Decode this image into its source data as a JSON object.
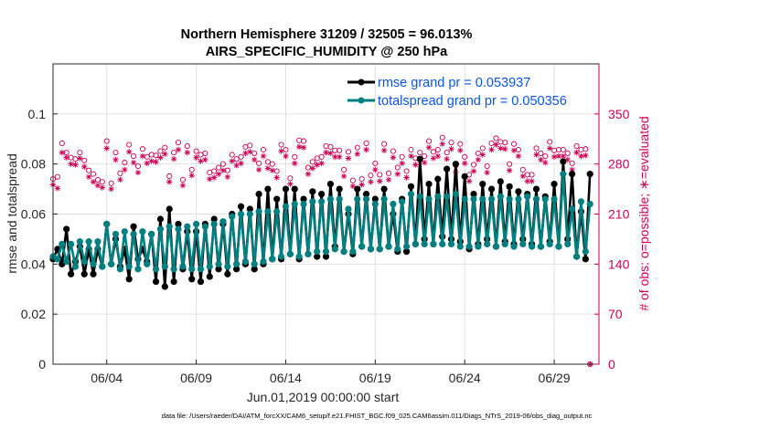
{
  "chart_data": {
    "type": "line",
    "title": "Northern Hemisphere 31209 / 32505 = 96.013%",
    "subtitle": "AIRS_SPECIFIC_HUMIDITY @ 250 hPa",
    "xlabel": "Jun.01,2019 00:00:00 start",
    "ylabel": "rmse and totalspread",
    "y2label": "# of obs: o=possible; ∗=evaluated",
    "footnote": "data file: /Users/raeder/DAI/ATM_forcXX/CAM6_setup/f.e21.FHIST_BGC.f09_025.CAM6assim.011/Diags_NTrS_2019-06/obs_diag_output.nc",
    "xlim": [
      1.0,
      31.5
    ],
    "ylim": [
      0,
      0.12
    ],
    "y2lim": [
      0,
      420
    ],
    "xticks": [
      4,
      9,
      14,
      19,
      24,
      29
    ],
    "xtick_labels": [
      "06/04",
      "06/09",
      "06/14",
      "06/19",
      "06/24",
      "06/29"
    ],
    "yticks": [
      0,
      0.02,
      0.04,
      0.06,
      0.08,
      0.1
    ],
    "ytick_labels": [
      "0",
      "0.02",
      "0.04",
      "0.06",
      "0.08",
      "0.1"
    ],
    "y2ticks": [
      0,
      70,
      140,
      210,
      280,
      350
    ],
    "y2tick_labels": [
      "0",
      "70",
      "140",
      "210",
      "280",
      "350"
    ],
    "grid": true,
    "legend_position": "top-right",
    "colors": {
      "rmse": "#000000",
      "spread": "#007f80",
      "obs": "#cc0055",
      "legend_text": "#0b55e0"
    },
    "x_start": 1.0,
    "x_step": 0.25,
    "series": [
      {
        "name": "rmse grand pr = 0.053937",
        "values": [
          0.042,
          0.046,
          0.04,
          0.054,
          0.036,
          0.041,
          0.047,
          0.036,
          0.046,
          0.036,
          0.046,
          0.039,
          0.056,
          0.04,
          0.05,
          0.039,
          0.046,
          0.034,
          0.055,
          0.042,
          0.046,
          0.041,
          0.052,
          0.033,
          0.058,
          0.031,
          0.062,
          0.033,
          0.056,
          0.038,
          0.053,
          0.034,
          0.053,
          0.033,
          0.056,
          0.035,
          0.058,
          0.038,
          0.056,
          0.036,
          0.06,
          0.038,
          0.063,
          0.04,
          0.062,
          0.038,
          0.068,
          0.04,
          0.07,
          0.042,
          0.066,
          0.042,
          0.07,
          0.044,
          0.07,
          0.042,
          0.066,
          0.044,
          0.069,
          0.043,
          0.068,
          0.043,
          0.072,
          0.047,
          0.07,
          0.045,
          0.06,
          0.044,
          0.07,
          0.047,
          0.068,
          0.046,
          0.066,
          0.046,
          0.07,
          0.047,
          0.06,
          0.045,
          0.066,
          0.045,
          0.071,
          0.048,
          0.082,
          0.05,
          0.072,
          0.048,
          0.074,
          0.051,
          0.078,
          0.05,
          0.08,
          0.049,
          0.075,
          0.046,
          0.068,
          0.048,
          0.072,
          0.05,
          0.07,
          0.047,
          0.073,
          0.049,
          0.071,
          0.048,
          0.069,
          0.05,
          0.068,
          0.048,
          0.07,
          0.047,
          0.067,
          0.049,
          0.072,
          0.047,
          0.081,
          0.05,
          0.076,
          0.043,
          0.061,
          0.042,
          0.076
        ]
      },
      {
        "name": "totalspread grand pr = 0.050356",
        "values": [
          0.043,
          0.042,
          0.048,
          0.041,
          0.048,
          0.039,
          0.049,
          0.041,
          0.049,
          0.04,
          0.049,
          0.039,
          0.056,
          0.04,
          0.052,
          0.038,
          0.053,
          0.039,
          0.052,
          0.038,
          0.053,
          0.04,
          0.052,
          0.038,
          0.054,
          0.039,
          0.055,
          0.038,
          0.054,
          0.039,
          0.055,
          0.038,
          0.056,
          0.038,
          0.055,
          0.039,
          0.056,
          0.04,
          0.057,
          0.039,
          0.059,
          0.04,
          0.06,
          0.041,
          0.06,
          0.04,
          0.061,
          0.041,
          0.061,
          0.042,
          0.061,
          0.043,
          0.063,
          0.044,
          0.064,
          0.043,
          0.064,
          0.044,
          0.065,
          0.045,
          0.065,
          0.045,
          0.066,
          0.046,
          0.066,
          0.045,
          0.062,
          0.045,
          0.066,
          0.047,
          0.066,
          0.046,
          0.064,
          0.046,
          0.066,
          0.047,
          0.064,
          0.046,
          0.065,
          0.047,
          0.068,
          0.048,
          0.067,
          0.048,
          0.066,
          0.048,
          0.067,
          0.048,
          0.067,
          0.048,
          0.068,
          0.047,
          0.066,
          0.047,
          0.066,
          0.047,
          0.066,
          0.048,
          0.066,
          0.047,
          0.067,
          0.048,
          0.066,
          0.047,
          0.066,
          0.048,
          0.067,
          0.047,
          0.066,
          0.047,
          0.066,
          0.048,
          0.066,
          0.047,
          0.076,
          0.048,
          0.062,
          0.043,
          0.065,
          0.045,
          0.064
        ]
      },
      {
        "name": "# of obs possible",
        "marker": "circle",
        "axis": "right",
        "values": [
          259,
          262,
          309,
          296,
          289,
          287,
          296,
          285,
          271,
          266,
          258,
          255,
          312,
          253,
          296,
          267,
          282,
          307,
          291,
          277,
          301,
          290,
          293,
          292,
          298,
          303,
          263,
          296,
          310,
          258,
          305,
          272,
          298,
          293,
          295,
          268,
          270,
          275,
          280,
          271,
          293,
          287,
          290,
          304,
          306,
          295,
          281,
          300,
          283,
          280,
          270,
          307,
          300,
          260,
          290,
          313,
          312,
          275,
          283,
          288,
          290,
          305,
          304,
          299,
          299,
          272,
          297,
          257,
          303,
          259,
          309,
          264,
          281,
          265,
          308,
          267,
          298,
          275,
          290,
          270,
          300,
          288,
          296,
          291,
          312,
          297,
          300,
          317,
          296,
          310,
          278,
          308,
          290,
          265,
          279,
          295,
          302,
          277,
          309,
          316,
          311,
          310,
          280,
          308,
          300,
          272,
          265,
          265,
          302,
          295,
          291,
          311,
          299,
          300,
          300,
          295,
          281,
          305,
          300,
          301,
          0
        ]
      },
      {
        "name": "# of obs evaluated",
        "marker": "star",
        "axis": "right",
        "values": [
          251,
          246,
          296,
          289,
          280,
          279,
          288,
          276,
          262,
          255,
          250,
          247,
          302,
          245,
          286,
          258,
          272,
          297,
          282,
          268,
          291,
          281,
          284,
          283,
          289,
          294,
          255,
          287,
          300,
          250,
          296,
          264,
          289,
          284,
          286,
          259,
          261,
          266,
          271,
          262,
          284,
          278,
          281,
          295,
          297,
          286,
          272,
          291,
          274,
          271,
          261,
          298,
          291,
          252,
          281,
          304,
          303,
          266,
          274,
          279,
          281,
          296,
          295,
          290,
          290,
          263,
          288,
          249,
          294,
          251,
          300,
          255,
          272,
          256,
          299,
          258,
          289,
          266,
          281,
          261,
          291,
          279,
          287,
          282,
          303,
          288,
          291,
          308,
          287,
          301,
          269,
          299,
          281,
          256,
          270,
          286,
          293,
          268,
          300,
          307,
          302,
          301,
          271,
          299,
          291,
          263,
          256,
          256,
          293,
          286,
          282,
          302,
          290,
          291,
          291,
          286,
          272,
          296,
          291,
          292,
          0
        ]
      }
    ]
  }
}
